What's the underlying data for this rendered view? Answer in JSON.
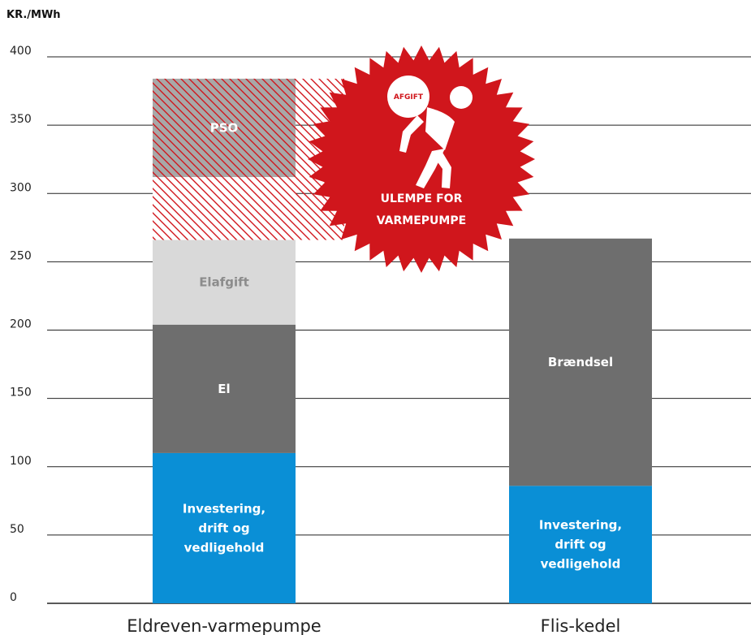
{
  "chart_data": {
    "type": "bar",
    "stacked": true,
    "ylabel": "KR./MWh",
    "ylim": [
      0,
      400
    ],
    "yticks": [
      0,
      50,
      100,
      150,
      200,
      250,
      300,
      350,
      400
    ],
    "grid": true,
    "categories": [
      "Eldreven-varmepumpe",
      "Flis-kedel"
    ],
    "stacks": [
      {
        "category": "Eldreven-varmepumpe",
        "segments": [
          {
            "label": "Investering,\ndrift og\nvedligehold",
            "value": 110,
            "color": "#0a8fd6",
            "text_color": "#ffffff"
          },
          {
            "label": "El",
            "value": 94,
            "color": "#6e6e6e",
            "text_color": "#ffffff"
          },
          {
            "label": "Elafgift",
            "value": 62,
            "color": "#d9d9d9",
            "text_color": "#8c8c8c"
          },
          {
            "label": "",
            "value": 46,
            "color": "#ffffff",
            "hatch": true,
            "text_color": "#ffffff"
          },
          {
            "label": "PSO",
            "value": 72,
            "color": "#a8a8a8",
            "hatch": true,
            "text_color": "#ffffff"
          }
        ]
      },
      {
        "category": "Flis-kedel",
        "segments": [
          {
            "label": "Investering,\ndrift og\nvedligehold",
            "value": 86,
            "color": "#0a8fd6",
            "text_color": "#ffffff"
          },
          {
            "label": "Brændsel",
            "value": 181,
            "color": "#6e6e6e",
            "text_color": "#ffffff"
          }
        ]
      }
    ],
    "annotation": {
      "badge_lines": [
        "ULEMPE FOR",
        "VARMEPUMPE"
      ],
      "figure_label": "AFGIFT",
      "from_value": 266,
      "to_value": 384,
      "color": "#d0161c"
    }
  }
}
